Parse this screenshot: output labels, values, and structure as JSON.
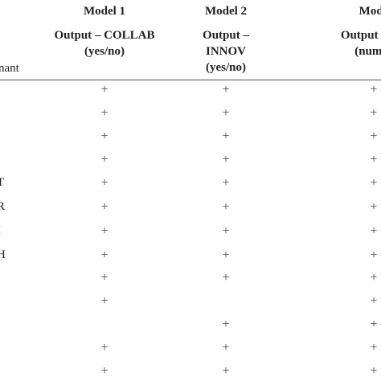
{
  "table": {
    "stub_header": "nant",
    "columns": [
      {
        "model": "Model 1",
        "output": [
          "Output – COLLAB",
          "(yes/no)"
        ]
      },
      {
        "model": "Model 2",
        "output": [
          "Output –",
          "INNOV",
          "(yes/no)"
        ]
      },
      {
        "model": "Mode",
        "output": [
          "Output – TU",
          "(numer"
        ]
      }
    ],
    "rows": [
      {
        "label": null,
        "cells": [
          "+",
          "+",
          "+"
        ]
      },
      {
        "label": null,
        "cells": [
          "+",
          "+",
          "+"
        ]
      },
      {
        "label": null,
        "cells": [
          "+",
          "+",
          "+"
        ]
      },
      {
        "label": null,
        "cells": [
          "+",
          "+",
          "+"
        ]
      },
      {
        "label": "T",
        "cells": [
          "+",
          "+",
          "+"
        ]
      },
      {
        "label": "R",
        "cells": [
          "+",
          "+",
          "+"
        ]
      },
      {
        "label": "I",
        "cells": [
          "+",
          "+",
          "+"
        ]
      },
      {
        "label": "H",
        "cells": [
          "+",
          "+",
          "+"
        ]
      },
      {
        "label": null,
        "cells": [
          "+",
          "+",
          "+"
        ]
      },
      {
        "label": null,
        "cells": [
          "+",
          null,
          "+"
        ]
      },
      {
        "label": null,
        "cells": [
          null,
          "+",
          "+"
        ]
      },
      {
        "label": null,
        "cells": [
          "+",
          "+",
          "+"
        ]
      },
      {
        "label": null,
        "cells": [
          "+",
          "+",
          "+"
        ]
      }
    ]
  }
}
